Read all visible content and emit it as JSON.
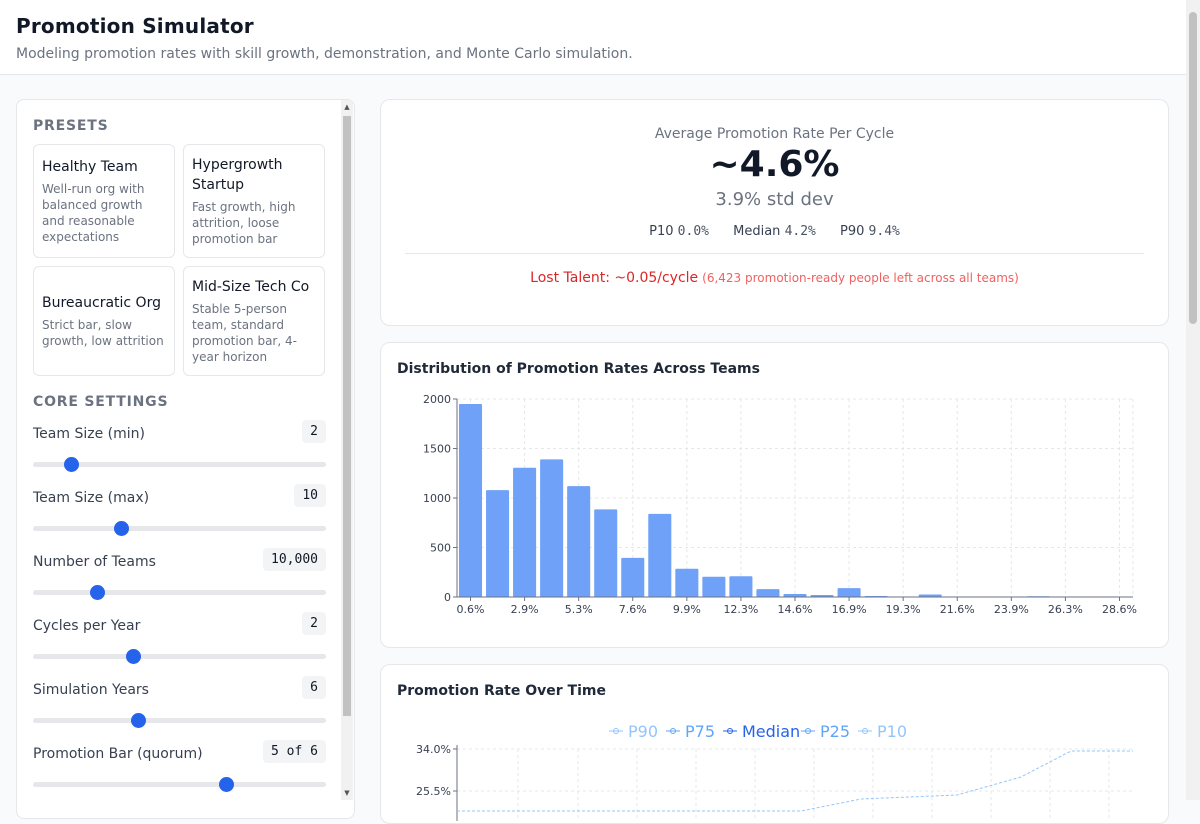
{
  "header": {
    "title": "Promotion Simulator",
    "subtitle": "Modeling promotion rates with skill growth, demonstration, and Monte Carlo simulation."
  },
  "presets": {
    "title": "PRESETS",
    "items": [
      {
        "name": "Healthy Team",
        "desc": "Well-run org with balanced growth and reasonable expectations"
      },
      {
        "name": "Hypergrowth Startup",
        "desc": "Fast growth, high attrition, loose promotion bar"
      },
      {
        "name": "Bureaucratic Org",
        "desc": "Strict bar, slow growth, low attrition"
      },
      {
        "name": "Mid-Size Tech Co",
        "desc": "Stable 5-person team, standard promotion bar, 4-year horizon"
      }
    ]
  },
  "core": {
    "title": "CORE SETTINGS",
    "settings": [
      {
        "label": "Team Size (min)",
        "value": "2",
        "level": 0.13
      },
      {
        "label": "Team Size (max)",
        "value": "10",
        "level": 0.3
      },
      {
        "label": "Number of Teams",
        "value": "10,000",
        "level": 0.22
      },
      {
        "label": "Cycles per Year",
        "value": "2",
        "level": 0.34
      },
      {
        "label": "Simulation Years",
        "value": "6",
        "level": 0.36
      },
      {
        "label": "Promotion Bar (quorum)",
        "value": "5 of 6",
        "level": 0.66
      }
    ]
  },
  "summary": {
    "label": "Average Promotion Rate Per Cycle",
    "value": "~4.6%",
    "std": "3.9% std dev",
    "p10_label": "P10",
    "p10": "0.0%",
    "median_label": "Median",
    "median": "4.2%",
    "p90_label": "P90",
    "p90": "9.4%",
    "lost_talent": "Lost Talent: ~0.05/cycle",
    "lost_detail": "(6,423 promotion-ready people left across all teams)"
  },
  "distribution": {
    "title": "Distribution of Promotion Rates Across Teams"
  },
  "timeseries": {
    "title": "Promotion Rate Over Time",
    "legend": [
      "P90",
      "P75",
      "Median",
      "P25",
      "P10"
    ]
  },
  "chart_data": [
    {
      "type": "bar",
      "title": "Distribution of Promotion Rates Across Teams",
      "x_tick_labels": [
        "0.6%",
        "2.9%",
        "5.3%",
        "7.6%",
        "9.9%",
        "12.3%",
        "14.6%",
        "16.9%",
        "19.3%",
        "21.6%",
        "23.9%",
        "26.3%",
        "28.6%"
      ],
      "y_ticks": [
        0,
        500,
        1000,
        1500,
        2000
      ],
      "ylim": [
        0,
        2000
      ],
      "values": [
        1950,
        1080,
        1305,
        1390,
        1120,
        885,
        395,
        840,
        285,
        205,
        210,
        80,
        30,
        20,
        90,
        10,
        5,
        25,
        5,
        5,
        5,
        8,
        3,
        2,
        1
      ],
      "grid": true,
      "color": "#6ea1f7"
    },
    {
      "type": "line",
      "title": "Promotion Rate Over Time",
      "series": [
        {
          "name": "P90"
        },
        {
          "name": "P75"
        },
        {
          "name": "Median"
        },
        {
          "name": "P25"
        },
        {
          "name": "P10"
        }
      ],
      "y_tick_labels": [
        "34.0%",
        "25.5%"
      ],
      "grid": true
    }
  ]
}
